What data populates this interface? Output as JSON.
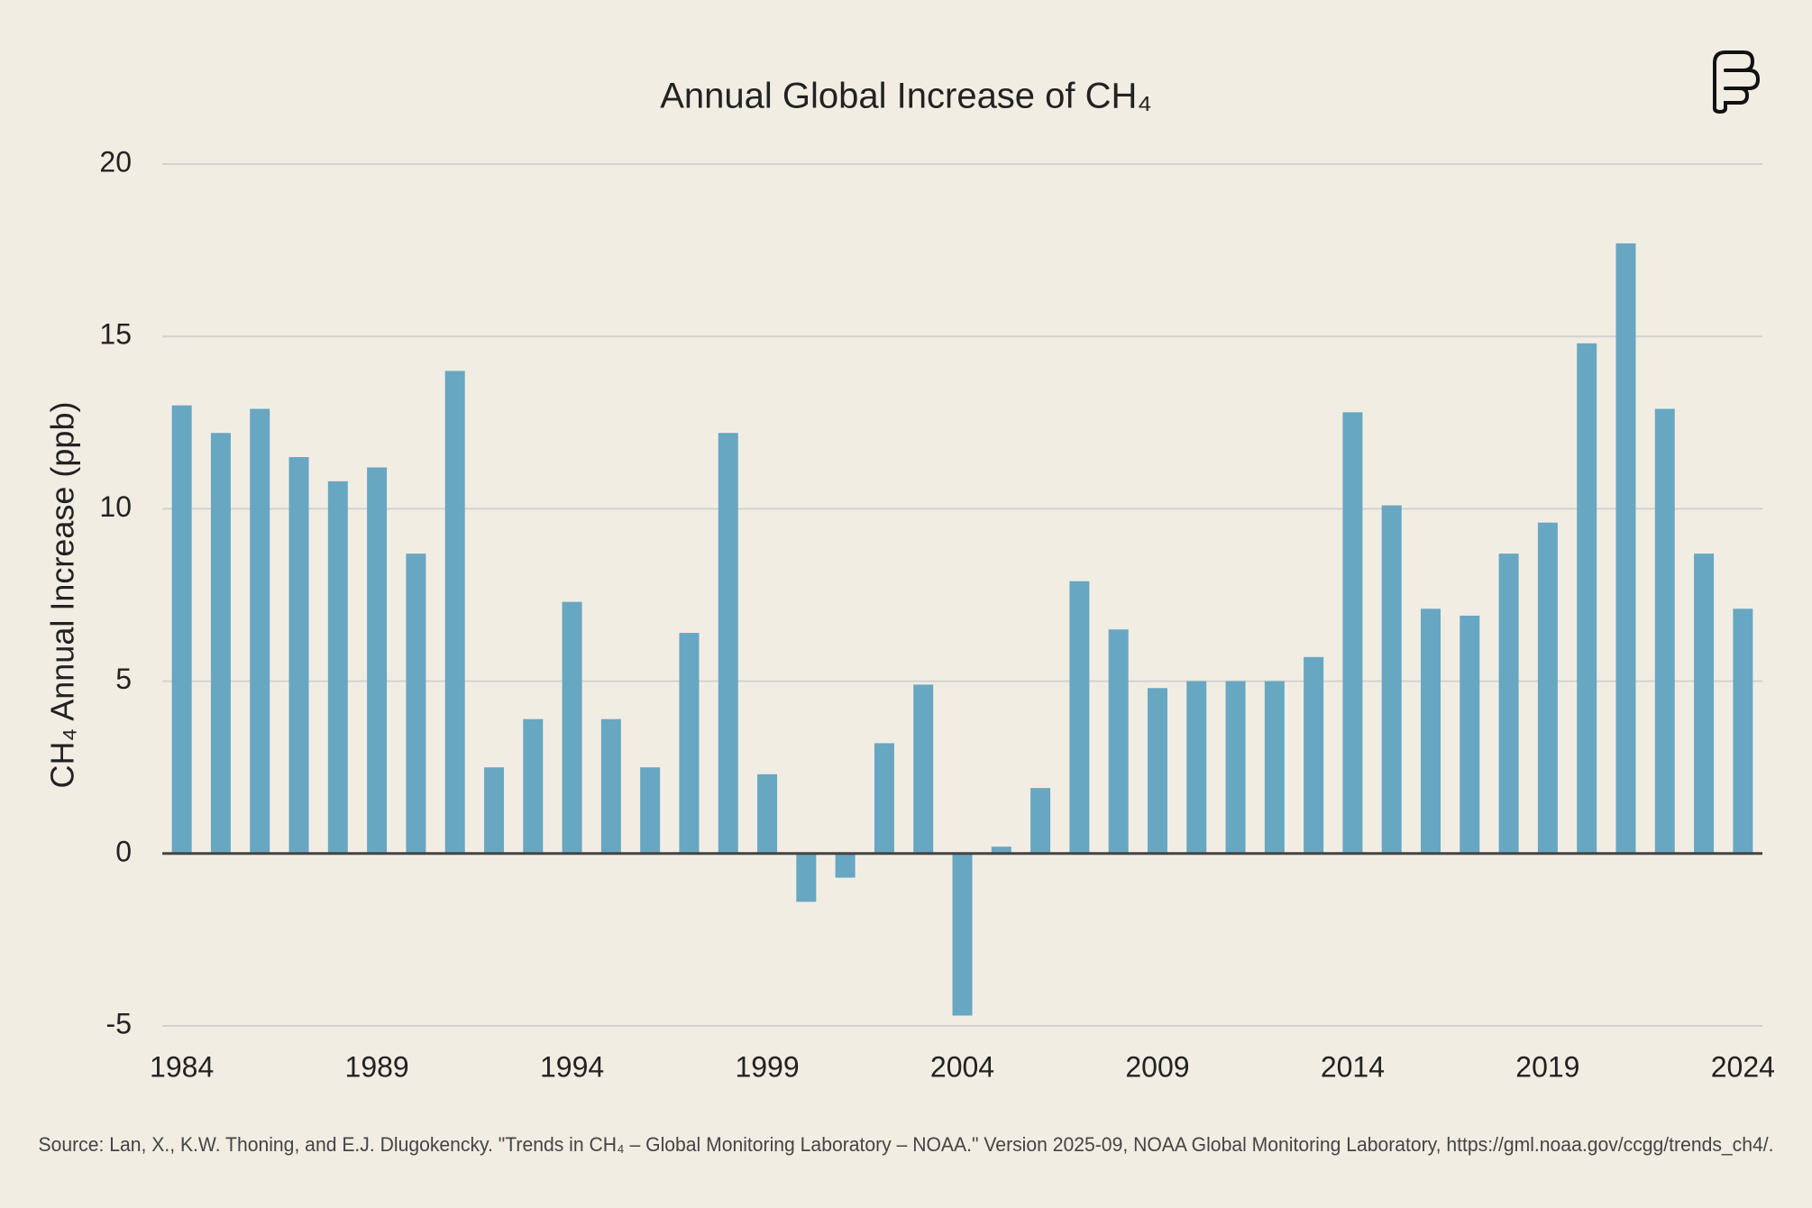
{
  "chart_data": {
    "type": "bar",
    "title": "Annual Global Increase of CH₄",
    "y_label": "CH₄ Annual Increase (ppb)",
    "source": "Source: Lan, X., K.W. Thoning, and E.J. Dlugokencky. \"Trends in CH₄ – Global Monitoring Laboratory – NOAA.\" Version 2025-09, NOAA Global Monitoring Laboratory, https://gml.noaa.gov/ccgg/trends_ch4/.",
    "x": [
      1984,
      1985,
      1986,
      1987,
      1988,
      1989,
      1990,
      1991,
      1992,
      1993,
      1994,
      1995,
      1996,
      1997,
      1998,
      1999,
      2000,
      2001,
      2002,
      2003,
      2004,
      2005,
      2006,
      2007,
      2008,
      2009,
      2010,
      2011,
      2012,
      2013,
      2014,
      2015,
      2016,
      2017,
      2018,
      2019,
      2020,
      2021,
      2022,
      2023,
      2024
    ],
    "values": [
      13.0,
      12.2,
      12.9,
      11.5,
      10.8,
      11.2,
      8.7,
      14.0,
      2.5,
      3.9,
      7.3,
      3.9,
      2.5,
      6.4,
      12.2,
      2.3,
      -1.4,
      -0.7,
      3.2,
      4.9,
      -4.7,
      0.2,
      1.9,
      7.9,
      6.5,
      4.8,
      5.0,
      5.0,
      5.0,
      5.7,
      12.8,
      10.1,
      7.1,
      6.9,
      8.7,
      9.6,
      14.8,
      17.7,
      12.9,
      8.7,
      7.1
    ],
    "color": "#67a7c2",
    "xlim": [
      1983.5,
      2024.5
    ],
    "xticks": [
      1984,
      1989,
      1994,
      1999,
      2004,
      2009,
      2014,
      2019,
      2024
    ],
    "ylim": [
      -5,
      20
    ],
    "yticks": [
      -5,
      0,
      5,
      10,
      15,
      20
    ],
    "grid": true
  }
}
